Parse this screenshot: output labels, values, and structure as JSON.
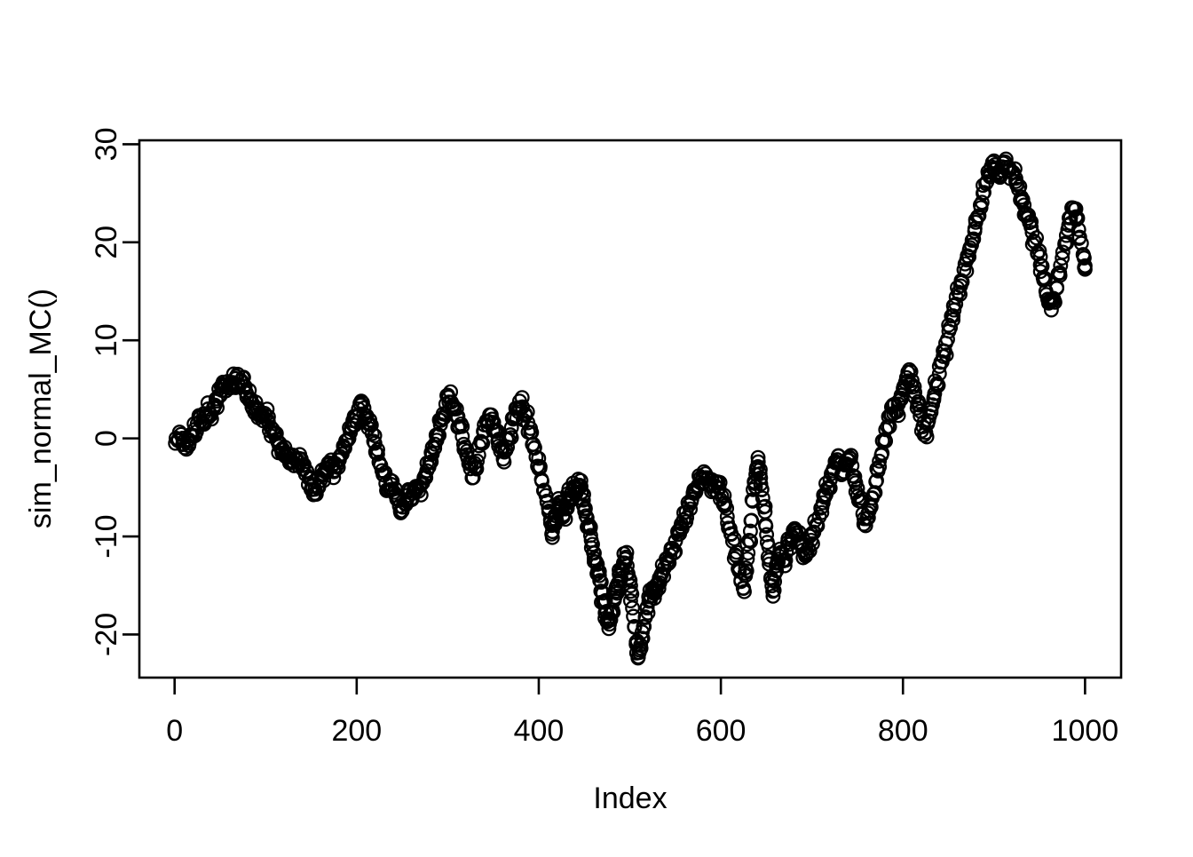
{
  "chart_data": {
    "type": "scatter",
    "title": "",
    "xlabel": "Index",
    "ylabel": "sim_normal_MC()",
    "x_ticks": [
      0,
      200,
      400,
      600,
      800,
      1000
    ],
    "y_ticks": [
      -20,
      -10,
      0,
      10,
      20,
      30
    ],
    "xlim": [
      -38.7,
      1039.6
    ],
    "ylim": [
      -24.4,
      30.4
    ],
    "grid": false,
    "legend": null,
    "marker": "open-circle",
    "marker_color": "#000000",
    "background": "#ffffff",
    "points": [
      [
        1,
        -0.5
      ],
      [
        4,
        -0.2
      ],
      [
        7,
        0.4
      ],
      [
        10,
        -0.6
      ],
      [
        13,
        -1.1
      ],
      [
        16,
        -0.5
      ],
      [
        19,
        0.3
      ],
      [
        22,
        0.9
      ],
      [
        25,
        1.5
      ],
      [
        28,
        2.1
      ],
      [
        31,
        1.5
      ],
      [
        34,
        2.3
      ],
      [
        37,
        3.0
      ],
      [
        40,
        2.4
      ],
      [
        43,
        3.1
      ],
      [
        46,
        3.8
      ],
      [
        49,
        4.4
      ],
      [
        52,
        4.9
      ],
      [
        55,
        5.4
      ],
      [
        58,
        5.8
      ],
      [
        61,
        5.2
      ],
      [
        64,
        5.7
      ],
      [
        67,
        6.1
      ],
      [
        70,
        5.5
      ],
      [
        73,
        5.9
      ],
      [
        76,
        5.3
      ],
      [
        79,
        4.6
      ],
      [
        82,
        3.9
      ],
      [
        85,
        3.2
      ],
      [
        88,
        2.6
      ],
      [
        91,
        3.1
      ],
      [
        94,
        2.4
      ],
      [
        97,
        1.8
      ],
      [
        100,
        2.3
      ],
      [
        103,
        1.7
      ],
      [
        106,
        1.1
      ],
      [
        109,
        0.5
      ],
      [
        112,
        -0.1
      ],
      [
        115,
        -0.8
      ],
      [
        118,
        -1.5
      ],
      [
        121,
        -0.9
      ],
      [
        124,
        -1.6
      ],
      [
        127,
        -2.3
      ],
      [
        130,
        -1.7
      ],
      [
        133,
        -2.2
      ],
      [
        136,
        -2.8
      ],
      [
        139,
        -2.1
      ],
      [
        142,
        -2.7
      ],
      [
        145,
        -3.3
      ],
      [
        148,
        -4.1
      ],
      [
        151,
        -4.9
      ],
      [
        154,
        -5.6
      ],
      [
        157,
        -5.0
      ],
      [
        160,
        -4.3
      ],
      [
        163,
        -3.6
      ],
      [
        166,
        -3.0
      ],
      [
        169,
        -2.5
      ],
      [
        172,
        -2.9
      ],
      [
        175,
        -3.4
      ],
      [
        178,
        -2.8
      ],
      [
        181,
        -2.2
      ],
      [
        184,
        -1.6
      ],
      [
        187,
        -1.0
      ],
      [
        190,
        -0.2
      ],
      [
        193,
        0.6
      ],
      [
        196,
        1.4
      ],
      [
        199,
        2.2
      ],
      [
        202,
        3.0
      ],
      [
        205,
        3.8
      ],
      [
        208,
        3.1
      ],
      [
        211,
        2.3
      ],
      [
        214,
        1.4
      ],
      [
        217,
        0.5
      ],
      [
        220,
        -0.5
      ],
      [
        223,
        -1.6
      ],
      [
        226,
        -2.7
      ],
      [
        229,
        -3.7
      ],
      [
        232,
        -4.6
      ],
      [
        235,
        -5.3
      ],
      [
        238,
        -4.7
      ],
      [
        241,
        -5.5
      ],
      [
        244,
        -6.2
      ],
      [
        247,
        -6.9
      ],
      [
        250,
        -7.4
      ],
      [
        253,
        -6.6
      ],
      [
        256,
        -5.8
      ],
      [
        259,
        -6.3
      ],
      [
        262,
        -5.6
      ],
      [
        265,
        -4.9
      ],
      [
        268,
        -5.4
      ],
      [
        271,
        -4.7
      ],
      [
        274,
        -4.0
      ],
      [
        277,
        -3.3
      ],
      [
        280,
        -2.5
      ],
      [
        283,
        -1.6
      ],
      [
        286,
        -0.6
      ],
      [
        289,
        0.4
      ],
      [
        292,
        1.4
      ],
      [
        295,
        2.5
      ],
      [
        298,
        3.5
      ],
      [
        301,
        4.2
      ],
      [
        304,
        3.7
      ],
      [
        307,
        3.0
      ],
      [
        310,
        2.2
      ],
      [
        313,
        1.2
      ],
      [
        316,
        0.2
      ],
      [
        319,
        -0.9
      ],
      [
        322,
        -2.0
      ],
      [
        325,
        -3.1
      ],
      [
        328,
        -4.0
      ],
      [
        331,
        -2.9
      ],
      [
        334,
        -1.7
      ],
      [
        337,
        -0.5
      ],
      [
        340,
        0.7
      ],
      [
        343,
        1.7
      ],
      [
        346,
        2.4
      ],
      [
        349,
        1.6
      ],
      [
        352,
        0.7
      ],
      [
        355,
        -0.3
      ],
      [
        358,
        -1.3
      ],
      [
        361,
        -2.1
      ],
      [
        364,
        -1.2
      ],
      [
        367,
        -0.1
      ],
      [
        370,
        1.1
      ],
      [
        373,
        2.2
      ],
      [
        376,
        3.1
      ],
      [
        379,
        3.8
      ],
      [
        382,
        3.2
      ],
      [
        385,
        2.5
      ],
      [
        388,
        1.6
      ],
      [
        391,
        0.6
      ],
      [
        394,
        -0.6
      ],
      [
        397,
        -1.9
      ],
      [
        400,
        -3.1
      ],
      [
        403,
        -4.2
      ],
      [
        406,
        -5.3
      ],
      [
        409,
        -6.4
      ],
      [
        411,
        -7.5
      ],
      [
        413,
        -8.6
      ],
      [
        415,
        -9.5
      ],
      [
        417,
        -8.7
      ],
      [
        419,
        -7.9
      ],
      [
        421,
        -7.1
      ],
      [
        423,
        -6.5
      ],
      [
        425,
        -7.1
      ],
      [
        427,
        -7.8
      ],
      [
        429,
        -7.2
      ],
      [
        431,
        -6.6
      ],
      [
        433,
        -6.1
      ],
      [
        435,
        -5.7
      ],
      [
        437,
        -5.3
      ],
      [
        439,
        -5.0
      ],
      [
        441,
        -5.5
      ],
      [
        443,
        -5.1
      ],
      [
        445,
        -4.8
      ],
      [
        447,
        -5.5
      ],
      [
        449,
        -6.3
      ],
      [
        451,
        -7.2
      ],
      [
        453,
        -8.1
      ],
      [
        455,
        -9.0
      ],
      [
        457,
        -9.9
      ],
      [
        459,
        -10.8
      ],
      [
        461,
        -11.7
      ],
      [
        463,
        -12.6
      ],
      [
        465,
        -13.5
      ],
      [
        467,
        -14.5
      ],
      [
        469,
        -15.6
      ],
      [
        471,
        -16.7
      ],
      [
        473,
        -17.8
      ],
      [
        475,
        -18.7
      ],
      [
        477,
        -19.4
      ],
      [
        479,
        -18.5
      ],
      [
        481,
        -17.5
      ],
      [
        483,
        -16.5
      ],
      [
        485,
        -15.6
      ],
      [
        487,
        -14.8
      ],
      [
        489,
        -14.0
      ],
      [
        491,
        -13.3
      ],
      [
        493,
        -12.7
      ],
      [
        495,
        -12.3
      ],
      [
        497,
        -13.0
      ],
      [
        499,
        -14.2
      ],
      [
        501,
        -15.6
      ],
      [
        503,
        -17.3
      ],
      [
        505,
        -19.2
      ],
      [
        507,
        -21.0
      ],
      [
        509,
        -22.4
      ],
      [
        511,
        -21.6
      ],
      [
        513,
        -20.4
      ],
      [
        515,
        -19.2
      ],
      [
        517,
        -18.2
      ],
      [
        519,
        -17.3
      ],
      [
        521,
        -16.6
      ],
      [
        523,
        -16.1
      ],
      [
        525,
        -15.7
      ],
      [
        527,
        -16.3
      ],
      [
        529,
        -15.6
      ],
      [
        531,
        -14.9
      ],
      [
        533,
        -14.3
      ],
      [
        535,
        -13.8
      ],
      [
        538,
        -13.2
      ],
      [
        541,
        -12.6
      ],
      [
        544,
        -11.9
      ],
      [
        547,
        -11.2
      ],
      [
        550,
        -10.5
      ],
      [
        553,
        -9.8
      ],
      [
        556,
        -9.0
      ],
      [
        559,
        -8.3
      ],
      [
        562,
        -7.5
      ],
      [
        565,
        -6.8
      ],
      [
        568,
        -6.2
      ],
      [
        571,
        -5.6
      ],
      [
        574,
        -5.0
      ],
      [
        577,
        -4.5
      ],
      [
        580,
        -4.0
      ],
      [
        583,
        -3.6
      ],
      [
        586,
        -4.1
      ],
      [
        589,
        -4.7
      ],
      [
        592,
        -5.3
      ],
      [
        595,
        -4.5
      ],
      [
        598,
        -5.1
      ],
      [
        601,
        -5.9
      ],
      [
        604,
        -6.9
      ],
      [
        607,
        -8.0
      ],
      [
        610,
        -9.2
      ],
      [
        613,
        -10.5
      ],
      [
        616,
        -11.9
      ],
      [
        619,
        -13.3
      ],
      [
        622,
        -14.6
      ],
      [
        625,
        -15.3
      ],
      [
        627,
        -14.0
      ],
      [
        629,
        -12.3
      ],
      [
        631,
        -10.4
      ],
      [
        633,
        -8.4
      ],
      [
        635,
        -6.4
      ],
      [
        637,
        -4.6
      ],
      [
        639,
        -3.2
      ],
      [
        641,
        -2.4
      ],
      [
        643,
        -3.6
      ],
      [
        645,
        -5.2
      ],
      [
        647,
        -7.0
      ],
      [
        649,
        -8.8
      ],
      [
        651,
        -10.6
      ],
      [
        653,
        -12.4
      ],
      [
        655,
        -14.2
      ],
      [
        657,
        -15.6
      ],
      [
        659,
        -14.6
      ],
      [
        661,
        -13.5
      ],
      [
        663,
        -12.6
      ],
      [
        666,
        -11.8
      ],
      [
        669,
        -12.4
      ],
      [
        672,
        -11.6
      ],
      [
        675,
        -10.8
      ],
      [
        678,
        -10.0
      ],
      [
        681,
        -9.2
      ],
      [
        684,
        -9.9
      ],
      [
        687,
        -10.7
      ],
      [
        690,
        -11.4
      ],
      [
        693,
        -12.0
      ],
      [
        696,
        -11.2
      ],
      [
        699,
        -10.4
      ],
      [
        702,
        -9.6
      ],
      [
        705,
        -8.8
      ],
      [
        708,
        -8.0
      ],
      [
        711,
        -7.0
      ],
      [
        714,
        -6.0
      ],
      [
        717,
        -5.1
      ],
      [
        720,
        -4.2
      ],
      [
        723,
        -3.3
      ],
      [
        726,
        -2.5
      ],
      [
        729,
        -1.8
      ],
      [
        732,
        -2.6
      ],
      [
        735,
        -3.4
      ],
      [
        738,
        -2.6
      ],
      [
        741,
        -1.9
      ],
      [
        744,
        -2.8
      ],
      [
        747,
        -3.9
      ],
      [
        750,
        -5.1
      ],
      [
        753,
        -6.4
      ],
      [
        756,
        -7.7
      ],
      [
        759,
        -8.9
      ],
      [
        762,
        -8.1
      ],
      [
        765,
        -7.0
      ],
      [
        768,
        -5.7
      ],
      [
        771,
        -4.3
      ],
      [
        774,
        -2.9
      ],
      [
        777,
        -1.5
      ],
      [
        780,
        -0.1
      ],
      [
        783,
        1.2
      ],
      [
        786,
        2.4
      ],
      [
        789,
        3.4
      ],
      [
        792,
        2.7
      ],
      [
        795,
        3.5
      ],
      [
        798,
        4.4
      ],
      [
        801,
        5.3
      ],
      [
        804,
        6.2
      ],
      [
        807,
        7.0
      ],
      [
        810,
        5.9
      ],
      [
        813,
        4.7
      ],
      [
        816,
        3.5
      ],
      [
        819,
        2.3
      ],
      [
        822,
        1.2
      ],
      [
        825,
        0.6
      ],
      [
        828,
        1.8
      ],
      [
        831,
        3.0
      ],
      [
        834,
        4.2
      ],
      [
        837,
        5.4
      ],
      [
        840,
        6.6
      ],
      [
        843,
        7.8
      ],
      [
        846,
        8.9
      ],
      [
        849,
        10.1
      ],
      [
        852,
        11.3
      ],
      [
        855,
        12.5
      ],
      [
        858,
        13.7
      ],
      [
        861,
        14.9
      ],
      [
        864,
        16.1
      ],
      [
        867,
        17.2
      ],
      [
        870,
        18.2
      ],
      [
        873,
        19.2
      ],
      [
        876,
        20.2
      ],
      [
        879,
        21.4
      ],
      [
        882,
        22.6
      ],
      [
        885,
        23.8
      ],
      [
        888,
        25.0
      ],
      [
        891,
        26.0
      ],
      [
        894,
        26.9
      ],
      [
        897,
        27.7
      ],
      [
        900,
        28.3
      ],
      [
        903,
        27.6
      ],
      [
        906,
        26.9
      ],
      [
        909,
        27.7
      ],
      [
        912,
        28.2
      ],
      [
        915,
        27.3
      ],
      [
        918,
        26.5
      ],
      [
        921,
        27.1
      ],
      [
        924,
        26.2
      ],
      [
        927,
        25.4
      ],
      [
        930,
        24.6
      ],
      [
        933,
        23.8
      ],
      [
        936,
        22.9
      ],
      [
        939,
        22.0
      ],
      [
        942,
        21.0
      ],
      [
        945,
        20.0
      ],
      [
        948,
        18.9
      ],
      [
        951,
        17.7
      ],
      [
        954,
        16.4
      ],
      [
        957,
        15.0
      ],
      [
        960,
        13.8
      ],
      [
        963,
        13.1
      ],
      [
        966,
        14.1
      ],
      [
        969,
        15.4
      ],
      [
        972,
        16.9
      ],
      [
        975,
        18.4
      ],
      [
        978,
        19.9
      ],
      [
        981,
        21.3
      ],
      [
        984,
        22.5
      ],
      [
        987,
        23.5
      ],
      [
        990,
        22.6
      ],
      [
        993,
        21.3
      ],
      [
        996,
        19.9
      ],
      [
        999,
        18.4
      ],
      [
        1000,
        17.6
      ]
    ]
  },
  "render_hints": {
    "midpoints": 2,
    "jitter_y": 0.9,
    "jitter_x": 2.0,
    "marker_radius": 7.3,
    "marker_stroke_width": 2.3,
    "axis_stroke_width": 2.6,
    "tick_length": 19,
    "tick_font_size": 34,
    "label_font_size": 34
  }
}
